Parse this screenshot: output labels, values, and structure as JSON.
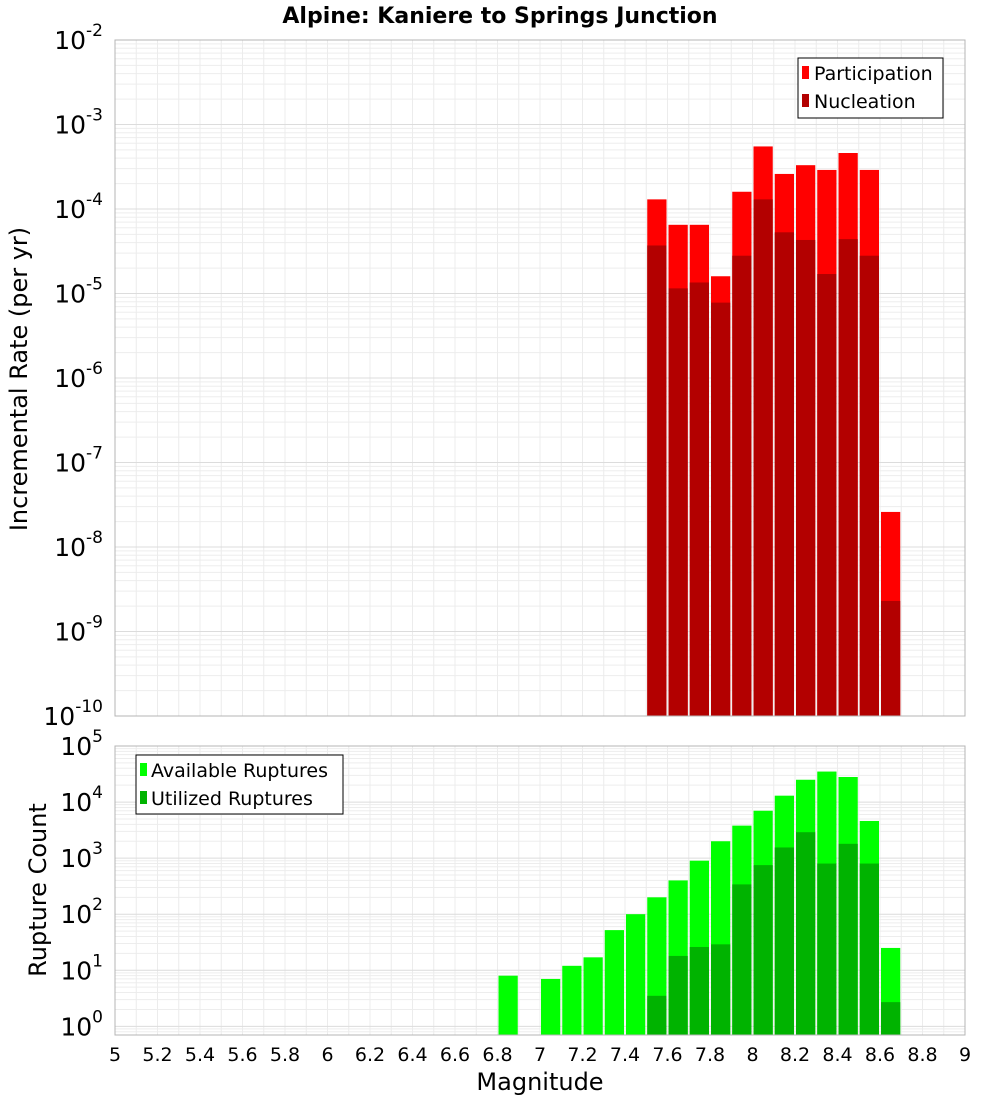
{
  "chart_data": [
    {
      "type": "bar",
      "title": "Alpine: Kaniere to Springs Junction",
      "ylabel": "Incremental Rate (per yr)",
      "xlabel": "",
      "xlim": [
        5,
        9
      ],
      "ylim": [
        1e-10,
        0.01
      ],
      "yscale": "log",
      "y_tick_exponents": [
        "-10",
        "-9",
        "-8",
        "-7",
        "-6",
        "-5",
        "-4",
        "-3",
        "-2"
      ],
      "legend_position": "top-right",
      "grid": true,
      "bin_width": 0.1,
      "series": [
        {
          "name": "Participation",
          "color": "#ff0000",
          "x": [
            7.55,
            7.65,
            7.75,
            7.85,
            7.95,
            8.05,
            8.15,
            8.25,
            8.35,
            8.45,
            8.55,
            8.65
          ],
          "values": [
            0.00013,
            6.5e-05,
            6.5e-05,
            1.6e-05,
            0.00016,
            0.00055,
            0.00026,
            0.00033,
            0.00029,
            0.00046,
            0.00029,
            2.6e-08
          ]
        },
        {
          "name": "Nucleation",
          "color": "#b30000",
          "x": [
            7.55,
            7.65,
            7.75,
            7.85,
            7.95,
            8.05,
            8.15,
            8.25,
            8.35,
            8.45,
            8.55,
            8.65
          ],
          "values": [
            3.7e-05,
            1.15e-05,
            1.35e-05,
            7.8e-06,
            2.8e-05,
            0.00013,
            5.3e-05,
            4.3e-05,
            1.7e-05,
            4.4e-05,
            2.8e-05,
            2.3e-09
          ]
        }
      ]
    },
    {
      "type": "bar",
      "title": "",
      "ylabel": "Rupture Count",
      "xlabel": "Magnitude",
      "xlim": [
        5,
        9
      ],
      "ylim": [
        0.7,
        100000.0
      ],
      "yscale": "log",
      "y_tick_exponents": [
        "0",
        "1",
        "2",
        "3",
        "4",
        "5"
      ],
      "x_tick_labels": [
        "5",
        "5.2",
        "5.4",
        "5.6",
        "5.8",
        "6",
        "6.2",
        "6.4",
        "6.6",
        "6.8",
        "7",
        "7.2",
        "7.4",
        "7.6",
        "7.8",
        "8",
        "8.2",
        "8.4",
        "8.6",
        "8.8",
        "9"
      ],
      "legend_position": "top-left",
      "grid": true,
      "bin_width": 0.1,
      "series": [
        {
          "name": "Available Ruptures",
          "color": "#00ff00",
          "x": [
            6.85,
            7.05,
            7.15,
            7.25,
            7.35,
            7.45,
            7.55,
            7.65,
            7.75,
            7.85,
            7.95,
            8.05,
            8.15,
            8.25,
            8.35,
            8.45,
            8.55,
            8.65
          ],
          "values": [
            8,
            7,
            12,
            17,
            52,
            100,
            200,
            400,
            900,
            2000,
            3800,
            7000,
            13000,
            25000,
            35000,
            28000,
            4600,
            25
          ]
        },
        {
          "name": "Utilized Ruptures",
          "color": "#00b300",
          "x": [
            7.55,
            7.65,
            7.75,
            7.85,
            7.95,
            8.05,
            8.15,
            8.25,
            8.35,
            8.45,
            8.55,
            8.65
          ],
          "values": [
            3.5,
            18,
            26,
            29,
            340,
            750,
            1550,
            2900,
            800,
            1800,
            800,
            2.7
          ]
        }
      ]
    }
  ]
}
